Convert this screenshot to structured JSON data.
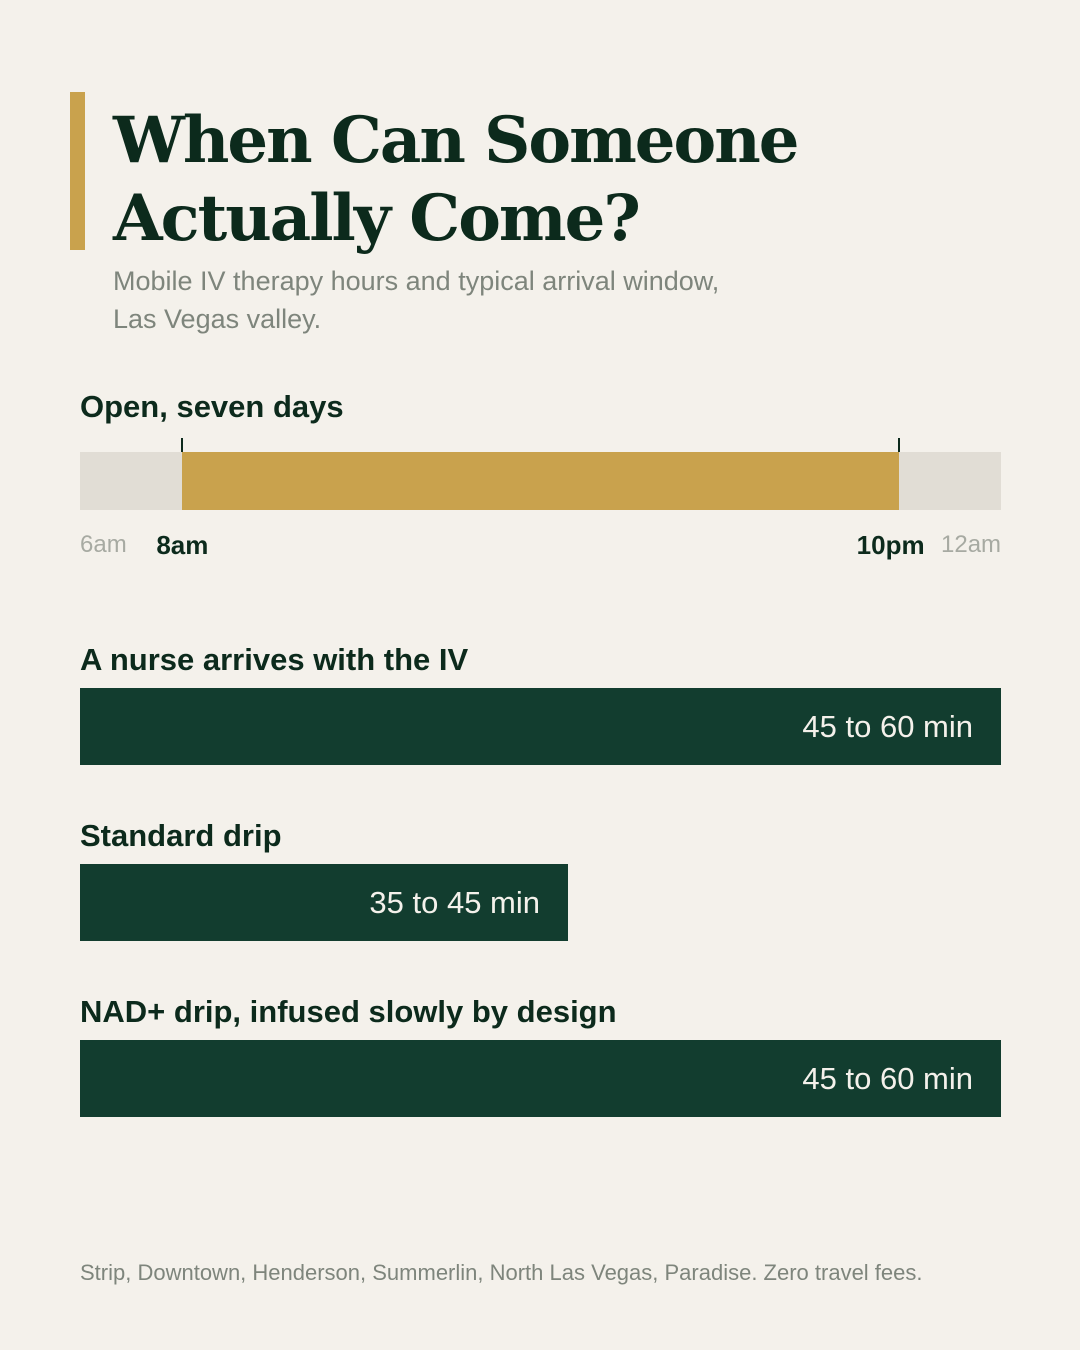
{
  "header": {
    "title_line1": "When Can Someone",
    "title_line2": "Actually Come?",
    "subtitle_line1": "Mobile IV therapy hours and typical arrival window,",
    "subtitle_line2": "Las Vegas valley.",
    "accent_color": "#c9a24d"
  },
  "chart_data": [
    {
      "type": "bar",
      "orientation": "horizontal",
      "title": "Open, seven days",
      "axis_range_hours": [
        6,
        24
      ],
      "open_hours": [
        8,
        22
      ],
      "tick_labels": [
        {
          "label": "6am",
          "hour": 6,
          "emphasis": false
        },
        {
          "label": "8am",
          "hour": 8,
          "emphasis": true
        },
        {
          "label": "10pm",
          "hour": 22,
          "emphasis": true
        },
        {
          "label": "12am",
          "hour": 24,
          "emphasis": false
        }
      ],
      "fill_color": "#c9a24d",
      "track_color": "#e1ddd5"
    },
    {
      "type": "bar",
      "orientation": "horizontal",
      "max_minutes": 60,
      "bar_color": "#123d2f",
      "bars": [
        {
          "label": "A nurse arrives with the IV",
          "value_label": "45 to 60 min",
          "min": 45,
          "max": 60
        },
        {
          "label": "Standard drip",
          "value_label": "35 to 45 min",
          "min": 35,
          "max": 45
        },
        {
          "label": "NAD+ drip, infused slowly by design",
          "value_label": "45 to 60 min",
          "min": 45,
          "max": 60
        }
      ]
    }
  ],
  "footer": {
    "text": "Strip, Downtown, Henderson, Summerlin, North Las Vegas, Paradise. Zero travel fees."
  }
}
